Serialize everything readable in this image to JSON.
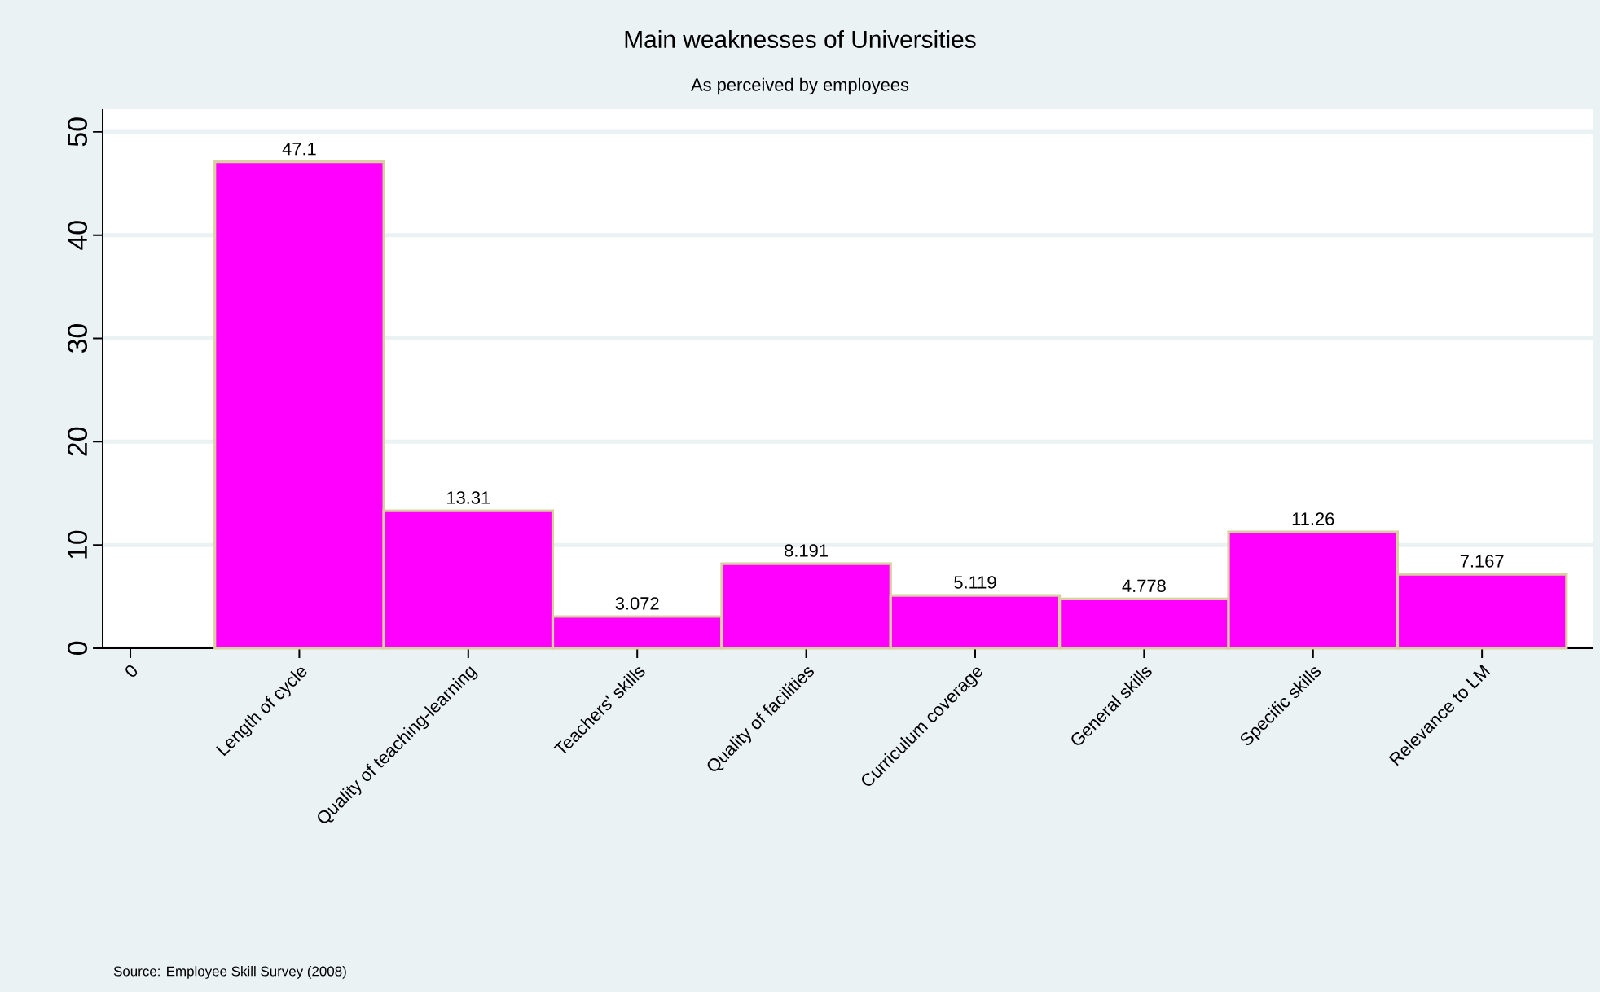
{
  "chart_data": {
    "type": "bar",
    "title": "Main weaknesses of Universities",
    "subtitle": "As perceived by employees",
    "categories": [
      "0",
      "Length of cycle",
      "Quality of teaching-learning",
      "Teachers' skills",
      "Quality of facilities",
      "Curriculum coverage",
      "General skills",
      "Specific skills",
      "Relevance to LM"
    ],
    "values": [
      null,
      47.1,
      13.31,
      3.072,
      8.191,
      5.119,
      4.778,
      11.26,
      7.167
    ],
    "color": "#ff00ff",
    "ylim": [
      0,
      52.2
    ],
    "yticks": [
      0,
      10,
      20,
      30,
      40,
      50
    ],
    "grid": "y",
    "data_labels": true,
    "annotations": [
      "Source: Employee Skill Survey (2008)"
    ]
  }
}
